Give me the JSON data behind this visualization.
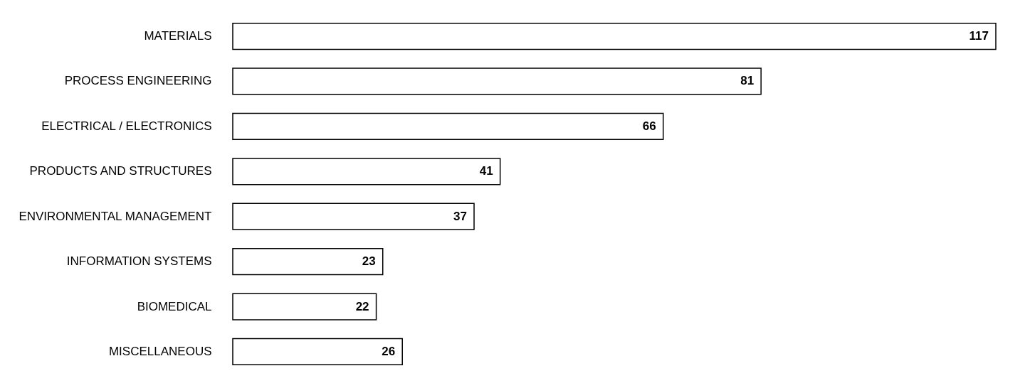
{
  "chart_data": {
    "type": "bar",
    "orientation": "horizontal",
    "categories": [
      "MATERIALS",
      "PROCESS ENGINEERING",
      "ELECTRICAL / ELECTRONICS",
      "PRODUCTS AND STRUCTURES",
      "ENVIRONMENTAL  MANAGEMENT",
      "INFORMATION SYSTEMS",
      "BIOMEDICAL",
      "MISCELLANEOUS"
    ],
    "values": [
      117,
      81,
      66,
      41,
      37,
      23,
      22,
      26
    ],
    "color": "#ffffff",
    "data_labels": true
  }
}
